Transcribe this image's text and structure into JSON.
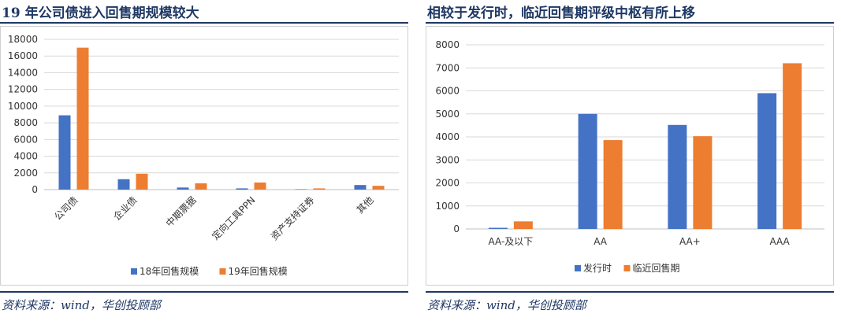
{
  "left": {
    "title": "19 年公司债进入回售期规模较大",
    "source": "资料来源：wind，华创投顾部",
    "colors": {
      "s1": "#4472c4",
      "s2": "#ed7d31"
    }
  },
  "right": {
    "title": "相较于发行时，临近回售期评级中枢有所上移",
    "source": "资料来源：wind，华创投顾部",
    "colors": {
      "s1": "#4472c4",
      "s2": "#ed7d31"
    }
  },
  "chart_data": [
    {
      "type": "bar",
      "categories": [
        "公司债",
        "企业债",
        "中期票据",
        "定向工具PPN",
        "资产支持证券",
        "其他"
      ],
      "series": [
        {
          "name": "18年回售规模",
          "values": [
            8900,
            1250,
            250,
            150,
            50,
            550
          ]
        },
        {
          "name": "19年回售规模",
          "values": [
            17000,
            1900,
            750,
            850,
            150,
            450
          ]
        }
      ],
      "ylim": [
        0,
        18000
      ],
      "yticks": [
        0,
        2000,
        4000,
        6000,
        8000,
        10000,
        12000,
        14000,
        16000,
        18000
      ],
      "grid": true,
      "legend": "bottom"
    },
    {
      "type": "bar",
      "categories": [
        "AA-及以下",
        "AA",
        "AA+",
        "AAA"
      ],
      "series": [
        {
          "name": "发行时",
          "values": [
            50,
            5000,
            4520,
            5900
          ]
        },
        {
          "name": "临近回售期",
          "values": [
            330,
            3860,
            4030,
            7200
          ]
        }
      ],
      "ylim": [
        0,
        8000
      ],
      "yticks": [
        0,
        1000,
        2000,
        3000,
        4000,
        5000,
        6000,
        7000,
        8000
      ],
      "grid": true,
      "legend": "bottom"
    }
  ]
}
